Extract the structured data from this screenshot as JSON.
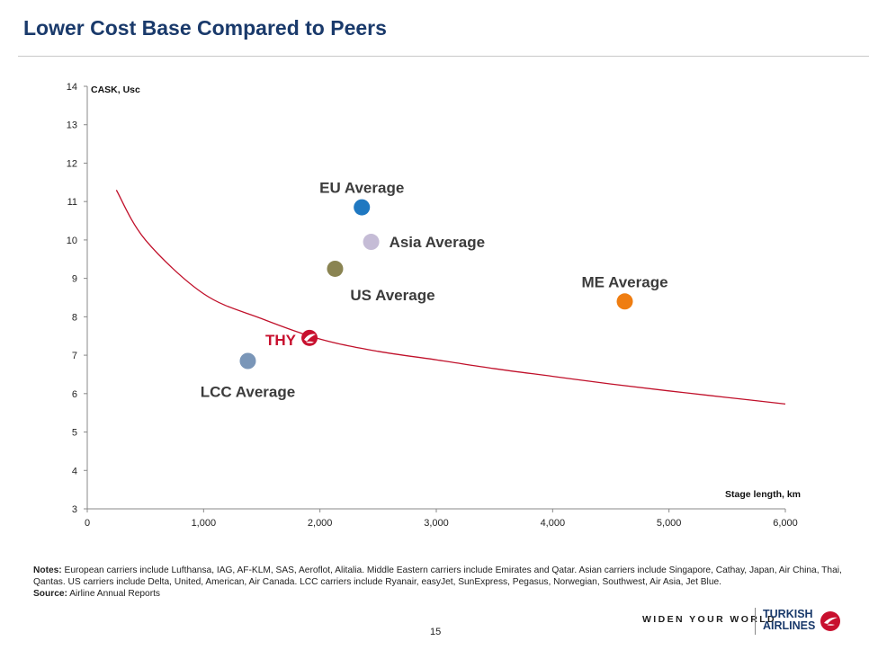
{
  "page": {
    "title": "Lower Cost Base Compared to Peers",
    "page_number": "15"
  },
  "notes": {
    "label": "Notes:",
    "text": " European carriers include Lufthansa, IAG, AF-KLM, SAS, Aeroflot, Alitalia. Middle Eastern carriers include Emirates and Qatar. Asian carriers include Singapore, Cathay, Japan, Air China, Thai, Qantas. US carriers include Delta, United, American, Air Canada. LCC carriers include Ryanair, easyJet, SunExpress, Pegasus, Norwegian, Southwest, Air Asia, Jet Blue.",
    "source_label": "Source:",
    "source_text": " Airline Annual Reports"
  },
  "footer": {
    "slogan": "WIDEN YOUR WORLD",
    "brand_line1": "TURKISH",
    "brand_line2": "AIRLINES",
    "brand_color": "#c8102e"
  },
  "chart_data": {
    "type": "scatter",
    "title": "",
    "xlabel": "Stage length, km",
    "ylabel": "CASK, Usc",
    "xlim": [
      0,
      6000
    ],
    "ylim": [
      3,
      14
    ],
    "x_ticks": [
      0,
      1000,
      2000,
      3000,
      4000,
      5000,
      6000
    ],
    "x_tick_labels": [
      "0",
      "1,000",
      "2,000",
      "3,000",
      "4,000",
      "5,000",
      "6,000"
    ],
    "y_ticks": [
      3,
      4,
      5,
      6,
      7,
      8,
      9,
      10,
      11,
      12,
      13,
      14
    ],
    "grid": false,
    "legend": "none",
    "points": [
      {
        "label": "EU Average",
        "x": 2360,
        "y": 10.85,
        "color": "#1f78c1",
        "label_pos": "above"
      },
      {
        "label": "Asia Average",
        "x": 2440,
        "y": 9.95,
        "color": "#c5bcd6",
        "label_pos": "right"
      },
      {
        "label": "US Average",
        "x": 2130,
        "y": 9.25,
        "color": "#8a8452",
        "label_pos": "below-right"
      },
      {
        "label": "ME Average",
        "x": 4620,
        "y": 8.4,
        "color": "#ef7d11",
        "label_pos": "above"
      },
      {
        "label": "THY",
        "x": 1910,
        "y": 7.45,
        "color": "#c8102e",
        "label_pos": "left",
        "marker": "logo"
      },
      {
        "label": "LCC Average",
        "x": 1380,
        "y": 6.85,
        "color": "#7a96b8",
        "label_pos": "below"
      }
    ],
    "trend_line": {
      "type": "power",
      "points": [
        {
          "x": 250,
          "y": 11.3
        },
        {
          "x": 500,
          "y": 10.0
        },
        {
          "x": 1000,
          "y": 8.6
        },
        {
          "x": 1500,
          "y": 7.95
        },
        {
          "x": 2000,
          "y": 7.42
        },
        {
          "x": 2500,
          "y": 7.1
        },
        {
          "x": 3000,
          "y": 6.88
        },
        {
          "x": 3500,
          "y": 6.65
        },
        {
          "x": 4000,
          "y": 6.45
        },
        {
          "x": 4500,
          "y": 6.25
        },
        {
          "x": 5000,
          "y": 6.07
        },
        {
          "x": 5500,
          "y": 5.9
        },
        {
          "x": 6000,
          "y": 5.73
        }
      ],
      "color": "#c0102a"
    }
  }
}
